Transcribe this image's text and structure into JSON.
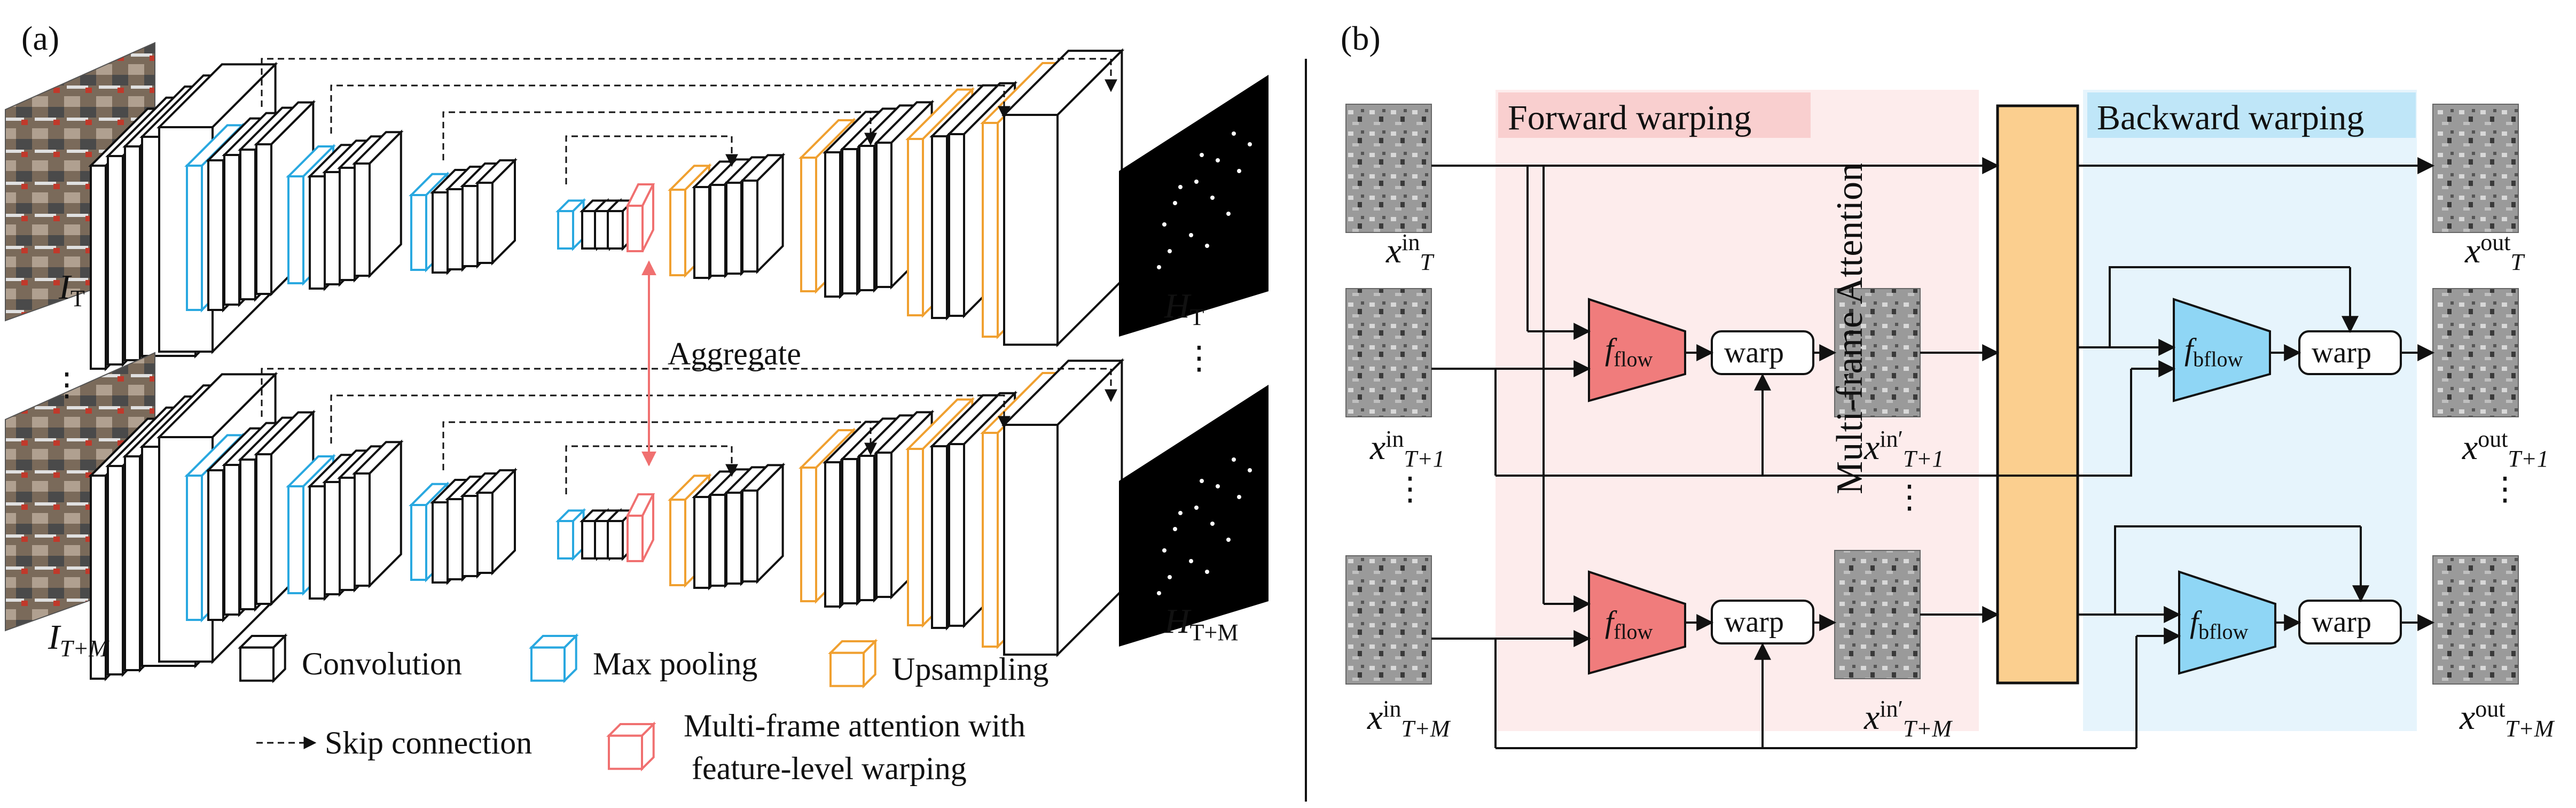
{
  "panel_a": {
    "label": "(a)",
    "input_top": {
      "base": "I",
      "sub": "T"
    },
    "input_bottom": {
      "base": "I",
      "sub": "T+M"
    },
    "output_top": {
      "base": "H",
      "sub": "T"
    },
    "output_bottom": {
      "base": "H",
      "sub": "T+M"
    },
    "vdots": "⋮",
    "aggregate_label": "Aggregate",
    "legend": {
      "convolution": "Convolution",
      "max_pooling": "Max pooling",
      "upsampling": "Upsampling",
      "skip_connection": "Skip connection",
      "mfa_line1": "Multi-frame attention with",
      "mfa_line2": "feature-level warping"
    }
  },
  "panel_b": {
    "label": "(b)",
    "forward_warping_label": "Forward warping",
    "backward_warping_label": "Backward warping",
    "multi_frame_attention_label": "Multi-frame Attention",
    "warp_label": "warp",
    "f_flow": {
      "base": "f",
      "sub": "flow"
    },
    "f_bflow": {
      "base": "f",
      "sub": "bflow"
    },
    "inputs": [
      {
        "base": "x",
        "sup": "in",
        "sub": "T"
      },
      {
        "base": "x",
        "sup": "in",
        "sub": "T+1"
      },
      {
        "base": "x",
        "sup": "in",
        "sub": "T+M"
      }
    ],
    "warped": [
      {
        "base": "x",
        "sup": "in′",
        "sub": "T+1"
      },
      {
        "base": "x",
        "sup": "in′",
        "sub": "T+M"
      }
    ],
    "outputs": [
      {
        "base": "x",
        "sup": "out",
        "sub": "T"
      },
      {
        "base": "x",
        "sup": "out",
        "sub": "T+1"
      },
      {
        "base": "x",
        "sup": "out",
        "sub": "T+M"
      }
    ],
    "vdots": "⋮"
  },
  "colors": {
    "conv": "#111111",
    "pool": "#29a8e0",
    "upsample": "#f0a030",
    "attention": "#f07070",
    "fflow_fill": "#f07c7c",
    "fbflow_fill": "#8fd6f5",
    "mfa_fill": "#fbcf8f",
    "forward_band": "#fdecec",
    "forward_label_bg": "#f9cfcf",
    "backward_band": "#e6f4fc",
    "backward_label_bg": "#bfe6f8"
  }
}
